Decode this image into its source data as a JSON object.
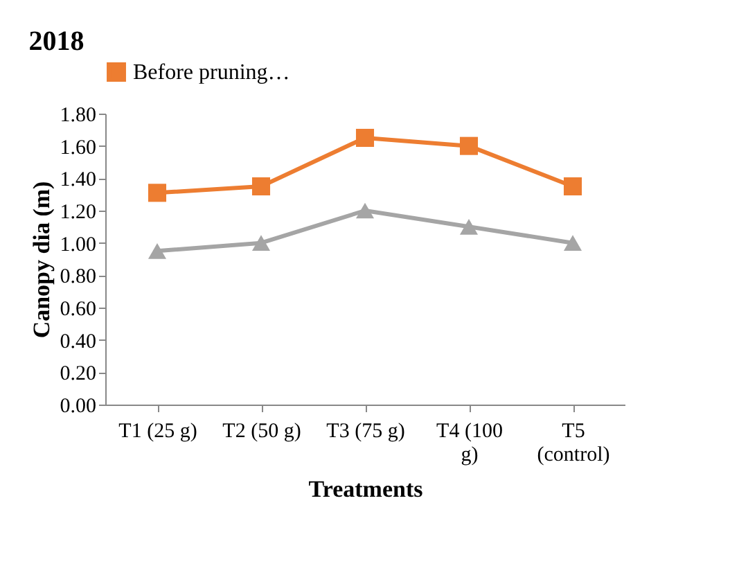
{
  "chart_data": {
    "type": "line",
    "title": "2018",
    "xlabel": "Treatments",
    "ylabel": "Canopy dia (m)",
    "categories": [
      "T1 (25 g)",
      "T2 (50 g)",
      "T3 (75 g)",
      "T4 (100 g)",
      "T5 (control)"
    ],
    "series": [
      {
        "name": "Before pruning…",
        "color": "#ed7d31",
        "marker": "square",
        "values": [
          1.31,
          1.35,
          1.65,
          1.6,
          1.35
        ]
      },
      {
        "color": "#a5a5a5",
        "marker": "triangle",
        "values": [
          0.95,
          1.0,
          1.2,
          1.1,
          1.0
        ]
      }
    ],
    "ylim": [
      0,
      1.8
    ],
    "yticks": [
      {
        "value": 0,
        "label": "0.00"
      },
      {
        "value": 0.2,
        "label": "0.20"
      },
      {
        "value": 0.4,
        "label": "0.40"
      },
      {
        "value": 0.6,
        "label": "0.60"
      },
      {
        "value": 0.8,
        "label": "0.80"
      },
      {
        "value": 1.0,
        "label": "1.00"
      },
      {
        "value": 1.2,
        "label": "1.20"
      },
      {
        "value": 1.4,
        "label": "1.40"
      },
      {
        "value": 1.6,
        "label": "1.60"
      },
      {
        "value": 1.8,
        "label": "1.80"
      }
    ],
    "grid": false,
    "legend": "top",
    "line_style": "solid"
  }
}
